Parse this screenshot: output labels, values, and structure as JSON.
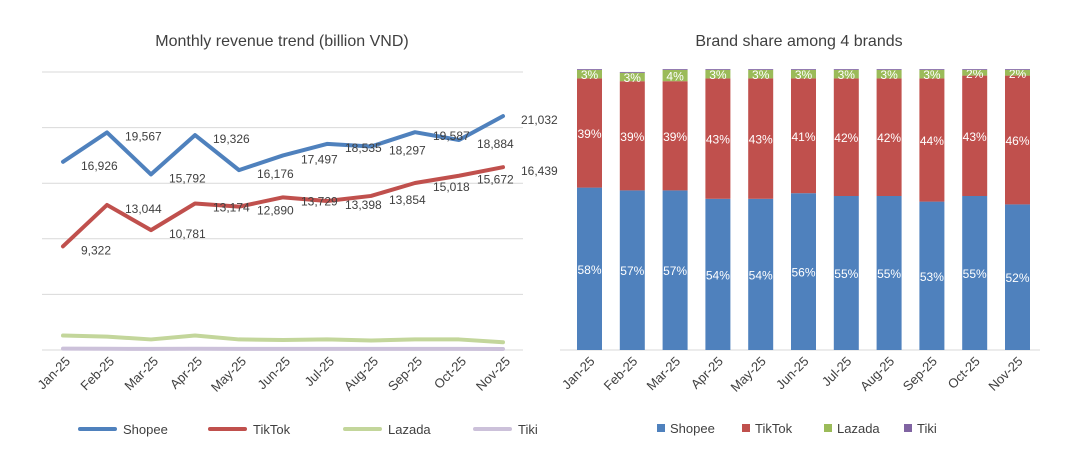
{
  "chart_data": [
    {
      "type": "line",
      "title": "Monthly revenue trend (billion VND)",
      "categories": [
        "Jan-25",
        "Feb-25",
        "Mar-25",
        "Apr-25",
        "May-25",
        "Jun-25",
        "Jul-25",
        "Aug-25",
        "Sep-25",
        "Oct-25",
        "Nov-25"
      ],
      "ylim": [
        0,
        25000
      ],
      "grid": true,
      "y_tick_labels_shown": false,
      "legend": "bottom",
      "series": [
        {
          "name": "Shopee",
          "color": "#4F81BD",
          "labeled": true,
          "values": [
            16926,
            19567,
            15792,
            19326,
            16176,
            17497,
            18535,
            18297,
            19587,
            18884,
            21032
          ]
        },
        {
          "name": "TikTok",
          "color": "#C0504D",
          "labeled": true,
          "values": [
            9322,
            13044,
            10781,
            13174,
            12890,
            13729,
            13398,
            13854,
            15018,
            15672,
            16439
          ]
        },
        {
          "name": "Lazada",
          "color": "#C3D69B",
          "labeled": false,
          "values": [
            1300,
            1200,
            950,
            1300,
            950,
            900,
            950,
            850,
            950,
            950,
            700
          ]
        },
        {
          "name": "Tiki",
          "color": "#CCC1DA",
          "labeled": false,
          "values": [
            120,
            110,
            100,
            110,
            100,
            100,
            100,
            100,
            100,
            100,
            90
          ]
        }
      ]
    },
    {
      "type": "bar",
      "stacked": true,
      "title": "Brand share among 4 brands",
      "categories": [
        "Jan-25",
        "Feb-25",
        "Mar-25",
        "Apr-25",
        "May-25",
        "Jun-25",
        "Jul-25",
        "Aug-25",
        "Sep-25",
        "Oct-25",
        "Nov-25"
      ],
      "ylim": [
        0,
        100
      ],
      "legend": "bottom",
      "series": [
        {
          "name": "Shopee",
          "color": "#4F81BD",
          "labeled": true,
          "values": [
            58,
            57,
            57,
            54,
            54,
            56,
            55,
            55,
            53,
            55,
            52
          ]
        },
        {
          "name": "TikTok",
          "color": "#C0504D",
          "labeled": true,
          "values": [
            39,
            39,
            39,
            43,
            43,
            41,
            42,
            42,
            44,
            43,
            46
          ]
        },
        {
          "name": "Lazada",
          "color": "#9BBB59",
          "labeled": true,
          "values": [
            3,
            3,
            4,
            3,
            3,
            3,
            3,
            3,
            3,
            2,
            2
          ]
        },
        {
          "name": "Tiki",
          "color": "#8064A2",
          "labeled": false,
          "values": [
            0.3,
            0.3,
            0.3,
            0.3,
            0.3,
            0.3,
            0.3,
            0.3,
            0.3,
            0.3,
            0.3
          ]
        }
      ]
    }
  ]
}
